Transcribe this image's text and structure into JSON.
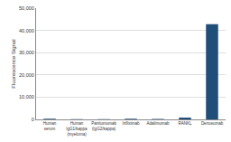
{
  "chart_data": {
    "type": "bar",
    "y_label": "Fluorescence Signal",
    "categories": [
      "Human serum",
      "Human IgG1/kappa (myeloma)",
      "Panitumumab (IgG2/kappa)",
      "Infliximab",
      "Adalimumab",
      "RANKL",
      "Denosumab"
    ],
    "values": [
      300,
      100,
      100,
      300,
      200,
      800,
      42800
    ],
    "color": "#1f4e79",
    "ylim": [
      0,
      50000
    ],
    "yticks": [
      0,
      {
        "value": 10000,
        "label": "10,000"
      },
      {
        "value": 20000,
        "label": "20,000"
      },
      {
        "value": 30000,
        "label": "30,000"
      },
      {
        "value": 40000,
        "label": "40,000"
      },
      {
        "value": 50000,
        "label": "50,000"
      }
    ],
    "grid": true
  }
}
